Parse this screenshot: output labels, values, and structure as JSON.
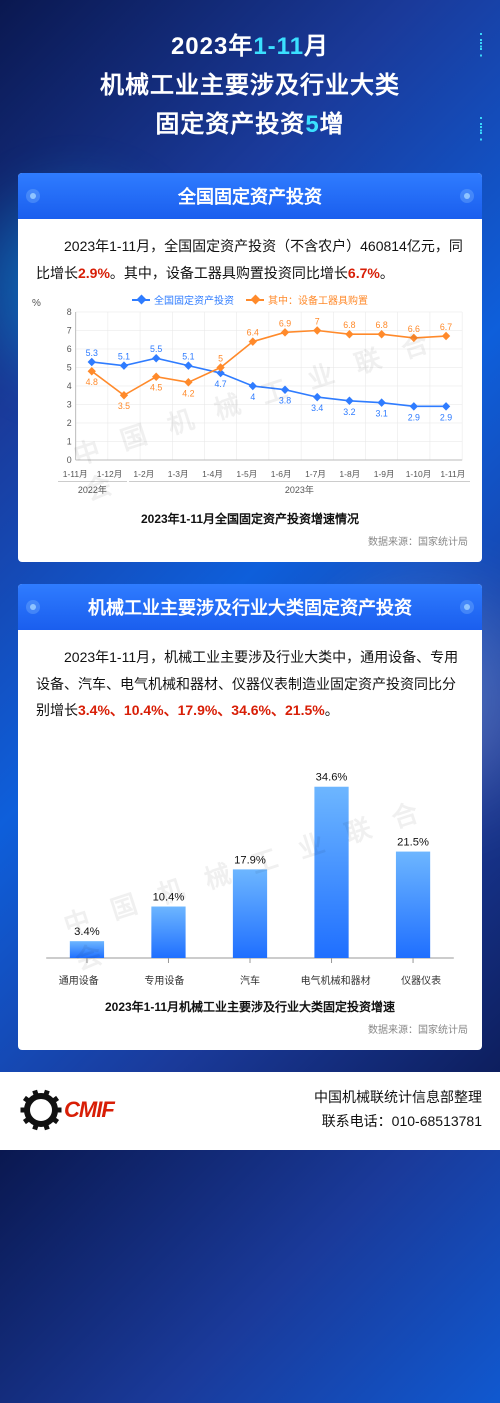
{
  "header": {
    "line1_pre": "2023年",
    "line1_hl": "1-11",
    "line1_post": "月",
    "line2": "机械工业主要涉及行业大类",
    "line3_pre": "固定资产投资",
    "line3_hl": "5",
    "line3_post": "增"
  },
  "card1": {
    "title": "全国固定资产投资",
    "para_segments": [
      {
        "t": "2023年1-11月，全国固定资产投资（不含农户）460814亿元，同比增长",
        "red": false
      },
      {
        "t": "2.9%",
        "red": true
      },
      {
        "t": "。其中，设备工器具购置投资同比增长",
        "red": false
      },
      {
        "t": "6.7%",
        "red": true
      },
      {
        "t": "。",
        "red": false
      }
    ],
    "chart": {
      "type": "line",
      "y_unit": "%",
      "ylim": [
        0,
        8
      ],
      "ytick_step": 1,
      "grid_color": "#e6e6e6",
      "axis_color": "#bbbbbb",
      "categories": [
        "1-11月",
        "1-12月",
        "1-2月",
        "1-3月",
        "1-4月",
        "1-5月",
        "1-6月",
        "1-7月",
        "1-8月",
        "1-9月",
        "1-10月",
        "1-11月"
      ],
      "year_groups": [
        {
          "label": "2022年",
          "span": 2
        },
        {
          "label": "2023年",
          "span": 10
        }
      ],
      "series": [
        {
          "name": "全国固定资产投资",
          "color": "#2f7cff",
          "marker": "diamond",
          "values": [
            5.3,
            5.1,
            5.5,
            5.1,
            4.7,
            4.0,
            3.8,
            3.4,
            3.2,
            3.1,
            2.9,
            2.9
          ]
        },
        {
          "name": "其中：设备工器具购置",
          "color": "#ff8a2b",
          "marker": "diamond",
          "values": [
            4.8,
            3.5,
            4.5,
            4.2,
            5.0,
            6.4,
            6.9,
            7.0,
            6.8,
            6.8,
            6.6,
            6.7
          ]
        }
      ],
      "label_fontsize": 9,
      "caption": "2023年1-11月全国固定资产投资增速情况",
      "source": "数据来源：国家统计局",
      "watermark": "中 国 机 械 工 业 联 合 会"
    }
  },
  "card2": {
    "title": "机械工业主要涉及行业大类固定资产投资",
    "para_segments": [
      {
        "t": "2023年1-11月，机械工业主要涉及行业大类中，通用设备、专用设备、汽车、电气机械和器材、仪器仪表制造业固定资产投资同比分别增长",
        "red": false
      },
      {
        "t": "3.4%、10.4%、17.9%、34.6%、21.5%",
        "red": true
      },
      {
        "t": "。",
        "red": false
      }
    ],
    "chart": {
      "type": "bar",
      "categories": [
        "通用设备",
        "专用设备",
        "汽车",
        "电气机械和器材",
        "仪器仪表"
      ],
      "values": [
        3.4,
        10.4,
        17.9,
        34.6,
        21.5
      ],
      "value_labels": [
        "3.4%",
        "10.4%",
        "17.9%",
        "34.6%",
        "21.5%"
      ],
      "bar_color_top": "#6db6ff",
      "bar_color_bottom": "#1f6fff",
      "ylim": [
        0,
        40
      ],
      "axis_color": "#999999",
      "bar_width": 0.42,
      "label_fontsize": 11,
      "caption": "2023年1-11月机械工业主要涉及行业大类固定投资增速",
      "source": "数据来源：国家统计局",
      "watermark": "中 国 机 械 工 业 联 合 会"
    }
  },
  "footer": {
    "logo_text": "CMIF",
    "line1": "中国机械联统计信息部整理",
    "line2": "联系电话：010-68513781"
  }
}
